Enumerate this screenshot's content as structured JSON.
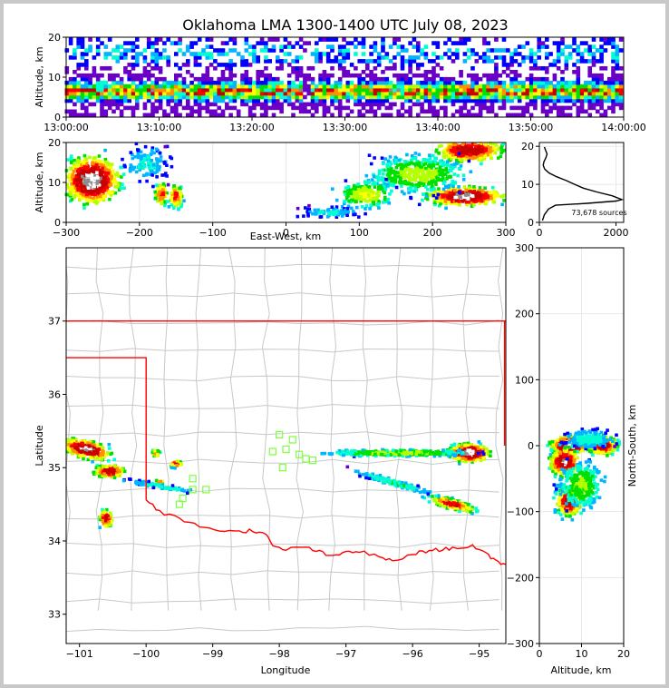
{
  "chart_data": [
    {
      "id": "time-height",
      "type": "heatmap",
      "title": "Oklahoma LMA 1300-1400 UTC July 08, 2023",
      "ylabel": "Altitude, km",
      "ylim": [
        0,
        20
      ],
      "y_ticks": [
        "0",
        "10",
        "20"
      ],
      "x_ticks": [
        "13:00:00",
        "13:10:00",
        "13:20:00",
        "13:30:00",
        "13:40:00",
        "13:50:00",
        "14:00:00"
      ]
    },
    {
      "id": "ew-altitude",
      "type": "heatmap",
      "xlabel": "East-West, km",
      "ylabel": "Altitude, km",
      "xlim": [
        -300,
        300
      ],
      "ylim": [
        0,
        20
      ],
      "x_ticks": [
        "−300",
        "−200",
        "−100",
        "0",
        "100",
        "200",
        "300"
      ],
      "y_ticks": [
        "0",
        "10",
        "20"
      ]
    },
    {
      "id": "altitude-histogram",
      "type": "line",
      "annotation": "73,678 sources",
      "xlim": [
        0,
        2200
      ],
      "ylim": [
        0,
        21
      ],
      "x_ticks": [
        "0",
        "2000"
      ],
      "y_ticks": [
        "0",
        "10",
        "20"
      ],
      "counts": [
        [
          80,
          0.5
        ],
        [
          130,
          2
        ],
        [
          240,
          3.5
        ],
        [
          420,
          4.5
        ],
        [
          1250,
          5
        ],
        [
          2000,
          5.6
        ],
        [
          2150,
          6
        ],
        [
          1900,
          7
        ],
        [
          1500,
          8
        ],
        [
          1150,
          9
        ],
        [
          920,
          10
        ],
        [
          700,
          11
        ],
        [
          450,
          12
        ],
        [
          250,
          13
        ],
        [
          140,
          14
        ],
        [
          100,
          15
        ],
        [
          120,
          16
        ],
        [
          170,
          17
        ],
        [
          200,
          18
        ],
        [
          160,
          19
        ],
        [
          130,
          19.8
        ]
      ]
    },
    {
      "id": "plan-view",
      "type": "heatmap",
      "xlabel": "Longitude",
      "ylabel": "Latitude",
      "xlim": [
        -101.2,
        -94.6
      ],
      "ylim": [
        32.6,
        38.0
      ],
      "x_ticks": [
        "−101",
        "−100",
        "−99",
        "−98",
        "−97",
        "−96",
        "−95"
      ],
      "y_ticks": [
        "33",
        "34",
        "35",
        "36",
        "37"
      ],
      "stations": [
        [
          -98.0,
          35.45
        ],
        [
          -97.8,
          35.38
        ],
        [
          -98.1,
          35.22
        ],
        [
          -97.9,
          35.25
        ],
        [
          -97.7,
          35.18
        ],
        [
          -97.6,
          35.12
        ],
        [
          -97.5,
          35.1
        ],
        [
          -97.95,
          35.0
        ],
        [
          -99.3,
          34.85
        ],
        [
          -99.3,
          34.7
        ],
        [
          -99.1,
          34.7
        ],
        [
          -99.45,
          34.58
        ],
        [
          -99.5,
          34.5
        ]
      ]
    },
    {
      "id": "ns-altitude",
      "type": "heatmap",
      "xlabel": "Altitude, km",
      "ylabel": "North-South, km",
      "xlim": [
        0,
        20
      ],
      "ylim": [
        -300,
        300
      ],
      "x_ticks": [
        "0",
        "10",
        "20"
      ],
      "y_ticks": [
        "300",
        "200",
        "100",
        "0",
        "−100",
        "−200",
        "−300"
      ]
    }
  ]
}
